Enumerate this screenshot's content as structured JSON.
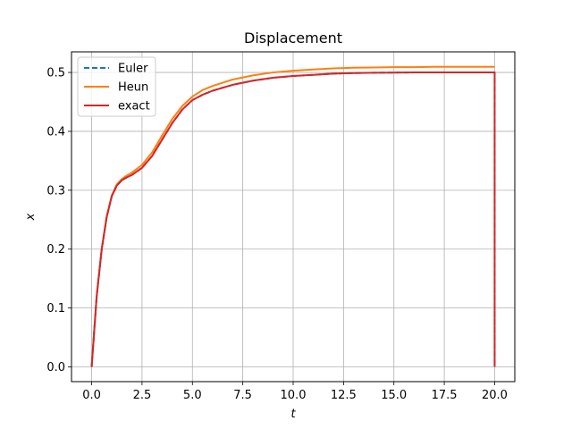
{
  "chart_data": {
    "type": "line",
    "title": "Displacement",
    "xlabel": "t",
    "ylabel": "x",
    "xlim": [
      -1.0,
      21.0
    ],
    "ylim": [
      -0.025,
      0.535
    ],
    "xticks": [
      0.0,
      2.5,
      5.0,
      7.5,
      10.0,
      12.5,
      15.0,
      17.5,
      20.0
    ],
    "xtick_labels": [
      "0.0",
      "2.5",
      "5.0",
      "7.5",
      "10.0",
      "12.5",
      "15.0",
      "17.5",
      "20.0"
    ],
    "yticks": [
      0.0,
      0.1,
      0.2,
      0.3,
      0.4,
      0.5
    ],
    "ytick_labels": [
      "0.0",
      "0.1",
      "0.2",
      "0.3",
      "0.4",
      "0.5"
    ],
    "grid": true,
    "legend_position": "upper-left",
    "series": [
      {
        "name": "Euler",
        "color": "#1f77b4",
        "style": "dashed",
        "x": [
          0,
          0.25,
          0.5,
          0.75,
          1.0,
          1.25,
          1.5,
          1.75,
          2.0,
          2.5,
          3.0,
          3.5,
          4.0,
          4.5,
          5.0,
          5.5,
          6.0,
          7.0,
          8.0,
          9.0,
          10.0,
          11.0,
          12.0,
          13.0,
          14.0,
          15.0,
          16.0,
          17.0,
          18.0,
          19.0,
          20.0,
          20.0
        ],
        "y": [
          0.0,
          0.12,
          0.2,
          0.255,
          0.29,
          0.308,
          0.317,
          0.322,
          0.326,
          0.338,
          0.358,
          0.386,
          0.414,
          0.437,
          0.453,
          0.462,
          0.469,
          0.479,
          0.486,
          0.491,
          0.494,
          0.496,
          0.498,
          0.499,
          0.4995,
          0.4998,
          0.5,
          0.5,
          0.5,
          0.5,
          0.5,
          0.0
        ]
      },
      {
        "name": "Heun",
        "color": "#ff7f0e",
        "style": "solid",
        "x": [
          0,
          0.25,
          0.5,
          0.75,
          1.0,
          1.25,
          1.5,
          1.75,
          2.0,
          2.5,
          3.0,
          3.5,
          4.0,
          4.5,
          5.0,
          5.5,
          6.0,
          7.0,
          8.0,
          9.0,
          10.0,
          11.0,
          12.0,
          13.0,
          14.0,
          15.0,
          16.0,
          17.0,
          18.0,
          19.0,
          20.0
        ],
        "y": [
          0.0,
          0.12,
          0.2,
          0.256,
          0.291,
          0.31,
          0.319,
          0.325,
          0.33,
          0.343,
          0.364,
          0.393,
          0.421,
          0.443,
          0.459,
          0.47,
          0.477,
          0.488,
          0.495,
          0.5,
          0.503,
          0.505,
          0.507,
          0.508,
          0.5085,
          0.509,
          0.509,
          0.5095,
          0.5095,
          0.5095,
          0.5095
        ]
      },
      {
        "name": "exact",
        "color": "#d62728",
        "style": "solid",
        "x": [
          0,
          0.25,
          0.5,
          0.75,
          1.0,
          1.25,
          1.5,
          1.75,
          2.0,
          2.5,
          3.0,
          3.5,
          4.0,
          4.5,
          5.0,
          5.5,
          6.0,
          7.0,
          8.0,
          9.0,
          10.0,
          11.0,
          12.0,
          13.0,
          14.0,
          15.0,
          16.0,
          17.0,
          18.0,
          19.0,
          20.0,
          20.0
        ],
        "y": [
          0.0,
          0.12,
          0.2,
          0.255,
          0.29,
          0.308,
          0.317,
          0.322,
          0.326,
          0.338,
          0.358,
          0.386,
          0.414,
          0.437,
          0.453,
          0.462,
          0.469,
          0.479,
          0.486,
          0.491,
          0.494,
          0.496,
          0.498,
          0.499,
          0.4995,
          0.4998,
          0.5,
          0.5,
          0.5,
          0.5,
          0.5,
          0.0
        ]
      }
    ]
  }
}
